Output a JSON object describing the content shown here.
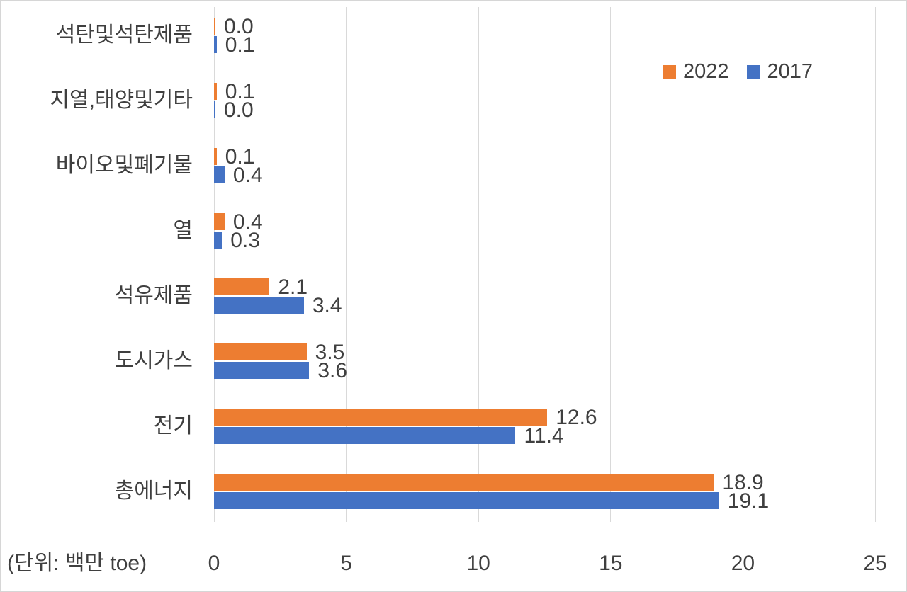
{
  "chart_data": {
    "type": "bar",
    "orientation": "horizontal",
    "title": "",
    "unit_note": "(단위: 백만 toe)",
    "categories": [
      "석탄및석탄제품",
      "지열,태양및기타",
      "바이오및폐기물",
      "열",
      "석유제품",
      "도시가스",
      "전기",
      "총에너지"
    ],
    "series": [
      {
        "name": "2022",
        "color": "#ED7D31",
        "values": [
          0.0,
          0.1,
          0.1,
          0.4,
          2.1,
          3.5,
          12.6,
          18.9
        ],
        "labels": [
          "0.0",
          "0.1",
          "0.1",
          "0.4",
          "2.1",
          "3.5",
          "12.6",
          "18.9"
        ]
      },
      {
        "name": "2017",
        "color": "#4472C4",
        "values": [
          0.1,
          0.0,
          0.4,
          0.3,
          3.4,
          3.6,
          11.4,
          19.1
        ],
        "labels": [
          "0.1",
          "0.0",
          "0.4",
          "0.3",
          "3.4",
          "3.6",
          "11.4",
          "19.1"
        ]
      }
    ],
    "xticks": [
      0,
      5,
      10,
      15,
      20,
      25
    ],
    "xlim": [
      0,
      25
    ],
    "grid": "vertical-only",
    "legend_position": "top-right",
    "gridline_color": "#D9D9D9",
    "text_color": "#3F3F3F"
  }
}
